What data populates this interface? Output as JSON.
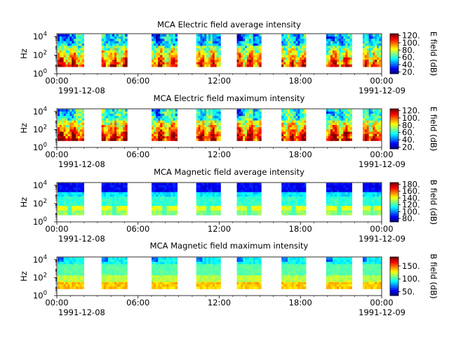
{
  "chart_data": [
    {
      "type": "heatmap",
      "title": "MCA  Electric field average intensity",
      "ylabel": "Hz",
      "yscale": "log",
      "yticks": [
        "10^0",
        "10^2",
        "10^4"
      ],
      "ylim_exp": [
        0,
        4.3
      ],
      "xticks": [
        "00:00",
        "06:00",
        "12:00",
        "18:00",
        "00:00"
      ],
      "date_start": "1991-12-08",
      "date_end": "1991-12-09",
      "xlim_hours": [
        0,
        24
      ],
      "passes_hours": [
        [
          0.0,
          2.0
        ],
        [
          3.3,
          5.2
        ],
        [
          7.0,
          8.9
        ],
        [
          10.3,
          12.1
        ],
        [
          13.3,
          15.1
        ],
        [
          16.6,
          18.4
        ],
        [
          19.9,
          21.8
        ],
        [
          22.6,
          24.2
        ]
      ],
      "colorbar_label": "E field (dB)",
      "colorbar_ticks": [
        "20.",
        "40.",
        "60.",
        "80.",
        "100.",
        "120."
      ],
      "colorbar_range": [
        15,
        125
      ],
      "pattern": "electric-avg"
    },
    {
      "type": "heatmap",
      "title": "MCA  Electric field maximum intensity",
      "ylabel": "Hz",
      "yscale": "log",
      "yticks": [
        "10^0",
        "10^2",
        "10^4"
      ],
      "ylim_exp": [
        0,
        4.3
      ],
      "xticks": [
        "00:00",
        "06:00",
        "12:00",
        "18:00",
        "00:00"
      ],
      "date_start": "1991-12-08",
      "date_end": "1991-12-09",
      "xlim_hours": [
        0,
        24
      ],
      "passes_hours": [
        [
          0.0,
          2.0
        ],
        [
          3.3,
          5.2
        ],
        [
          7.0,
          8.9
        ],
        [
          10.3,
          12.1
        ],
        [
          13.3,
          15.1
        ],
        [
          16.6,
          18.4
        ],
        [
          19.9,
          21.8
        ],
        [
          22.6,
          24.2
        ]
      ],
      "colorbar_label": "E field (dB)",
      "colorbar_ticks": [
        "20.",
        "40.",
        "60.",
        "80.",
        "100.",
        "120."
      ],
      "colorbar_range": [
        15,
        125
      ],
      "pattern": "electric-max"
    },
    {
      "type": "heatmap",
      "title": "MCA  Magnetic field average intensity",
      "ylabel": "Hz",
      "yscale": "log",
      "yticks": [
        "10^0",
        "10^2",
        "10^4"
      ],
      "ylim_exp": [
        0,
        4.3
      ],
      "xticks": [
        "00:00",
        "06:00",
        "12:00",
        "18:00",
        "00:00"
      ],
      "date_start": "1991-12-08",
      "date_end": "1991-12-09",
      "xlim_hours": [
        0,
        24
      ],
      "passes_hours": [
        [
          0.0,
          2.0
        ],
        [
          3.3,
          5.2
        ],
        [
          7.0,
          8.9
        ],
        [
          10.3,
          12.1
        ],
        [
          13.3,
          15.1
        ],
        [
          16.6,
          18.4
        ],
        [
          19.9,
          21.8
        ],
        [
          22.6,
          24.2
        ]
      ],
      "colorbar_label": "B field (dB)",
      "colorbar_ticks": [
        "80.",
        "100.",
        "120.",
        "140.",
        "160.",
        "180."
      ],
      "colorbar_range": [
        70,
        185
      ],
      "pattern": "magnetic-avg"
    },
    {
      "type": "heatmap",
      "title": "MCA  Magnetic field maximum intensity",
      "ylabel": "Hz",
      "yscale": "log",
      "yticks": [
        "10^0",
        "10^2",
        "10^4"
      ],
      "ylim_exp": [
        0,
        4.3
      ],
      "xticks": [
        "00:00",
        "06:00",
        "12:00",
        "18:00",
        "00:00"
      ],
      "date_start": "1991-12-08",
      "date_end": "1991-12-09",
      "xlim_hours": [
        0,
        24
      ],
      "passes_hours": [
        [
          0.0,
          2.0
        ],
        [
          3.3,
          5.2
        ],
        [
          7.0,
          8.9
        ],
        [
          10.3,
          12.1
        ],
        [
          13.3,
          15.1
        ],
        [
          16.6,
          18.4
        ],
        [
          19.9,
          21.8
        ],
        [
          22.6,
          24.2
        ]
      ],
      "colorbar_label": "B field (dB)",
      "colorbar_ticks": [
        "50.",
        "100.",
        "150."
      ],
      "colorbar_range": [
        35,
        185
      ],
      "pattern": "magnetic-max"
    }
  ]
}
